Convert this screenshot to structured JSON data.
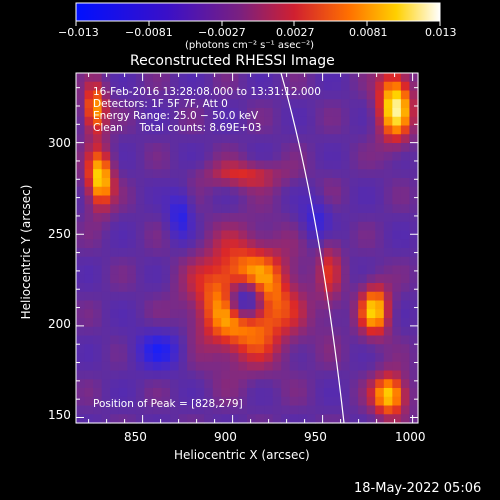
{
  "colorbar": {
    "tick_labels": [
      "−0.013",
      "−0.0081",
      "−0.0027",
      "0.0027",
      "0.0081",
      "0.013"
    ],
    "unit_label": "(photons cm⁻² s⁻¹ asec⁻²)",
    "range": [
      -0.013,
      0.013
    ]
  },
  "chart_data": {
    "type": "heatmap",
    "title": "Reconstructed RHESSI Image",
    "xlabel": "Heliocentric X (arcsec)",
    "ylabel": "Heliocentric Y (arcsec)",
    "x_ticks": [
      "850",
      "900",
      "950",
      "1000"
    ],
    "y_ticks": [
      "150",
      "200",
      "250",
      "300"
    ],
    "xlim": [
      813,
      1003
    ],
    "ylim": [
      147,
      338
    ],
    "annotations": {
      "line1": "16-Feb-2016 13:28:08.000 to 13:31:12.000",
      "line2": "Detectors: 1F 5F 7F, Att 0",
      "line3": "Energy Range: 25.0 − 50.0 keV",
      "line4": "Clean     Total counts: 8.69E+03",
      "peak": "Position of Peak = [828,279]"
    },
    "colormap": "blue-purple-red-yellow-white",
    "peak_position": [
      828,
      279
    ],
    "limb_line": true
  },
  "footer": {
    "timestamp": "18-May-2022 05:06"
  }
}
